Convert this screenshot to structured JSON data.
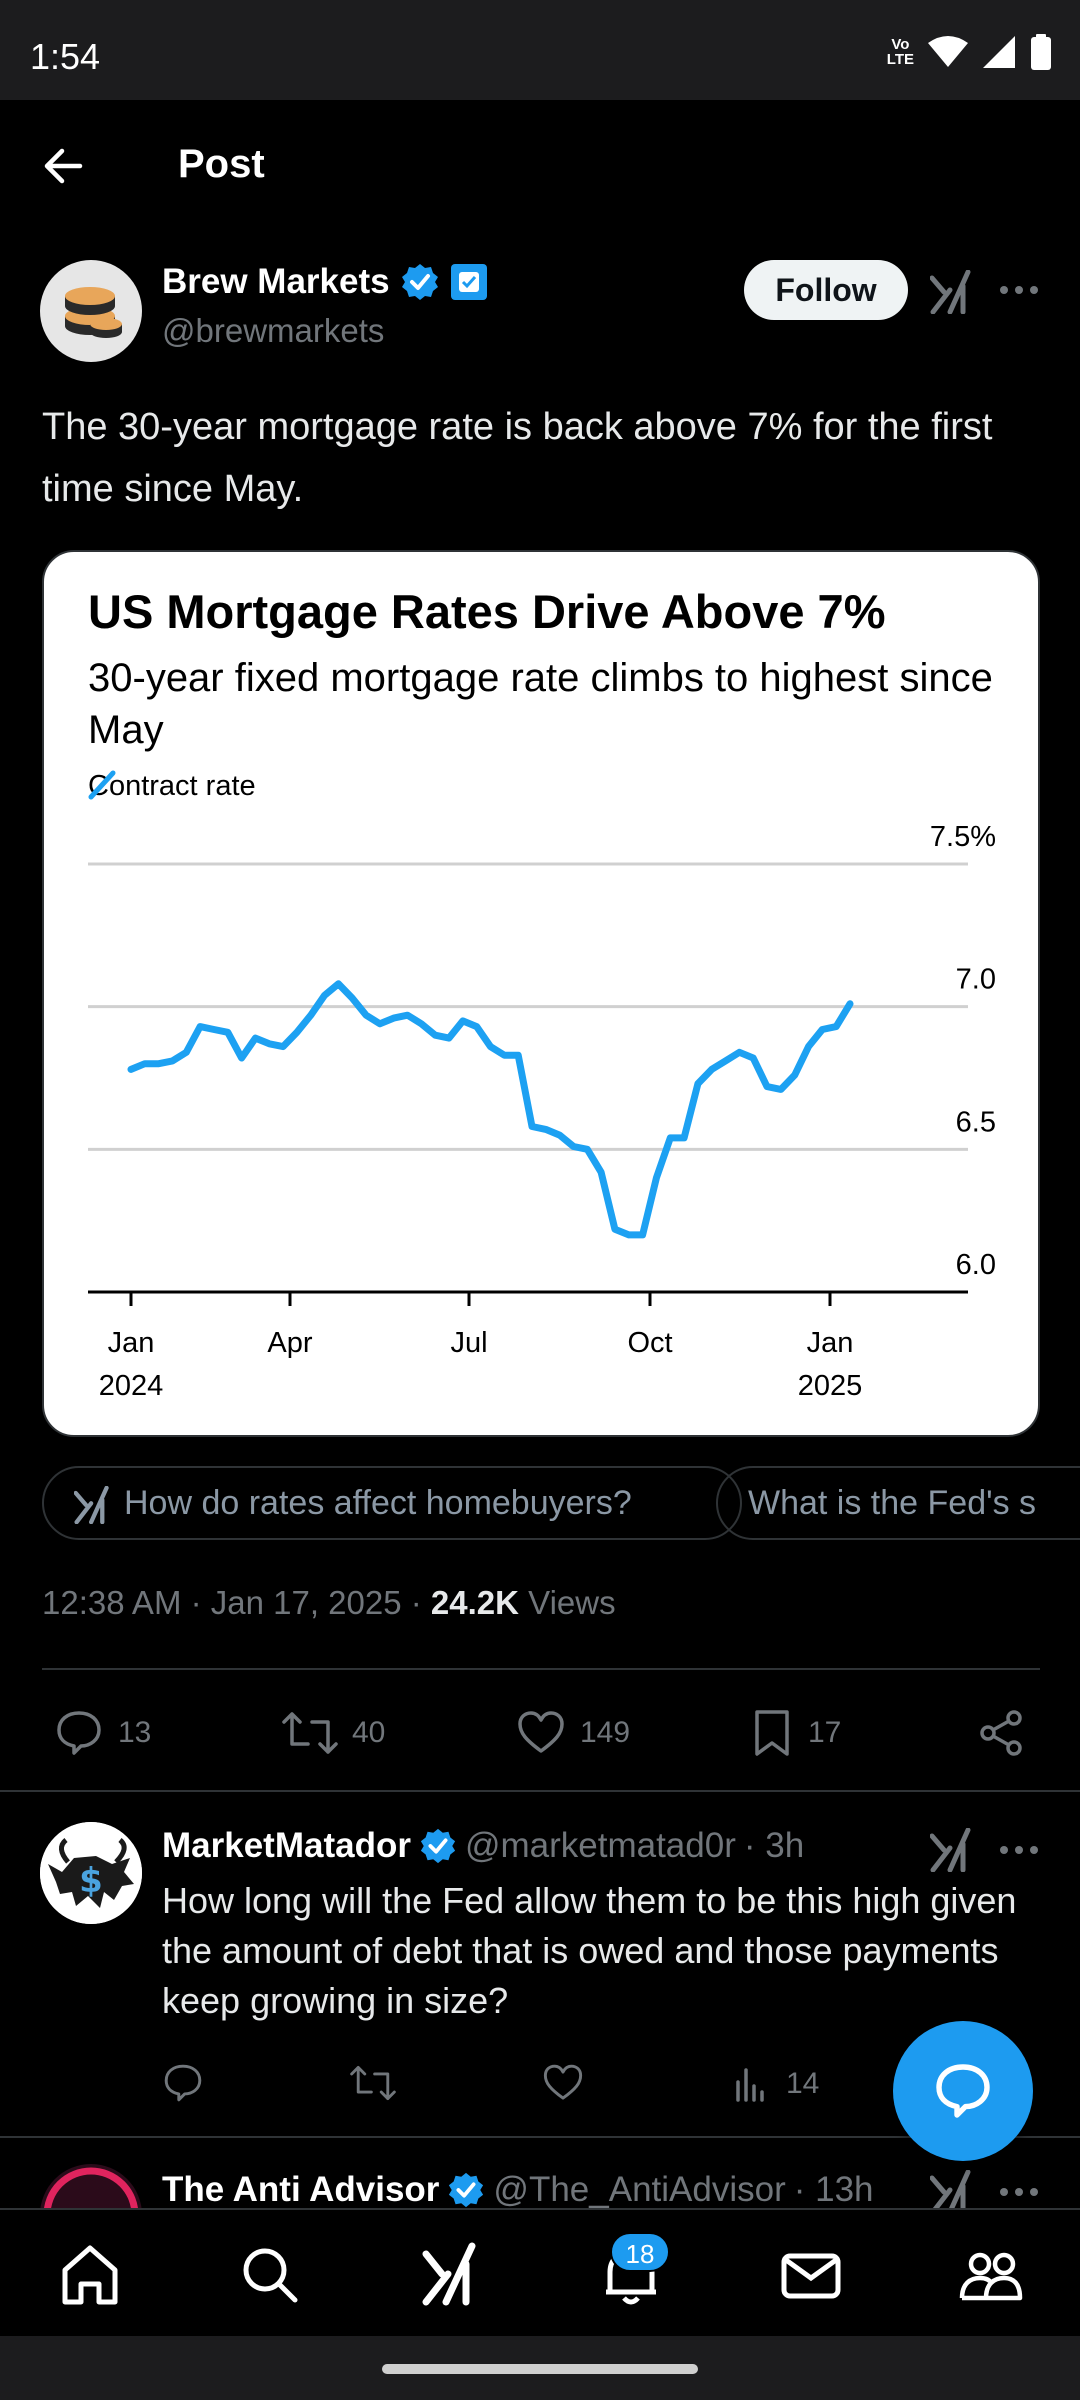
{
  "status_bar": {
    "time": "1:54",
    "volte_line1": "Vo",
    "volte_line2": "LTE",
    "icons": [
      "volte-icon",
      "wifi-icon",
      "signal-icon",
      "battery-icon"
    ]
  },
  "header": {
    "title": "Post",
    "back_icon": "back-arrow-icon"
  },
  "post": {
    "author_name": "Brew Markets",
    "author_handle": "@brewmarkets",
    "follow_label": "Follow",
    "text": "The 30-year mortgage rate is back above 7% for the first time since May.",
    "timestamp": "12:38 AM · Jan 17, 2025 · ",
    "views_count": "24.2K",
    "views_label": " Views",
    "stats": {
      "replies": "13",
      "reposts": "40",
      "likes": "149",
      "bookmarks": "17"
    }
  },
  "chart_data": {
    "type": "line",
    "title": "US Mortgage Rates Drive Above 7%",
    "subtitle": "30-year fixed mortgage rate climbs to highest since May",
    "series": [
      {
        "name": "Contract rate",
        "color": "#1da1f2",
        "values": [
          6.78,
          6.8,
          6.8,
          6.81,
          6.84,
          6.93,
          6.92,
          6.91,
          6.82,
          6.89,
          6.87,
          6.86,
          6.91,
          6.97,
          7.04,
          7.08,
          7.03,
          6.97,
          6.94,
          6.96,
          6.97,
          6.94,
          6.9,
          6.89,
          6.95,
          6.93,
          6.86,
          6.83,
          6.83,
          6.58,
          6.57,
          6.55,
          6.51,
          6.5,
          6.42,
          6.22,
          6.2,
          6.2,
          6.4,
          6.54,
          6.54,
          6.73,
          6.78,
          6.81,
          6.84,
          6.82,
          6.72,
          6.71,
          6.76,
          6.86,
          6.92,
          6.93,
          7.01
        ]
      }
    ],
    "x_tick_labels": [
      {
        "month": "Jan",
        "year": "2024"
      },
      {
        "month": "Apr",
        "year": ""
      },
      {
        "month": "Jul",
        "year": ""
      },
      {
        "month": "Oct",
        "year": ""
      },
      {
        "month": "Jan",
        "year": "2025"
      }
    ],
    "y_tick_labels": [
      "7.5%",
      "7.0",
      "6.5",
      "6.0"
    ],
    "ylim": [
      6.0,
      7.5
    ],
    "grid": true,
    "legend_position": "top-left"
  },
  "chips": [
    {
      "label": "How do rates affect homebuyers?",
      "icon": "grok-icon"
    },
    {
      "label": "What is the Fed's s"
    }
  ],
  "replies": [
    {
      "name": "MarketMatador",
      "handle": "@marketmatad0r",
      "time": " · 3h",
      "text": "How long will the Fed allow them to be this high given the amount of debt that is owed and those payments keep growing in size?",
      "views": "14"
    },
    {
      "name": "The Anti Advisor",
      "handle": "@The_AntiAdvisor",
      "time": " · 13h"
    }
  ],
  "bottom_nav": {
    "items": [
      "home-icon",
      "search-icon",
      "grok-icon",
      "notifications-icon",
      "messages-icon",
      "communities-icon"
    ],
    "notifications_badge": "18"
  }
}
